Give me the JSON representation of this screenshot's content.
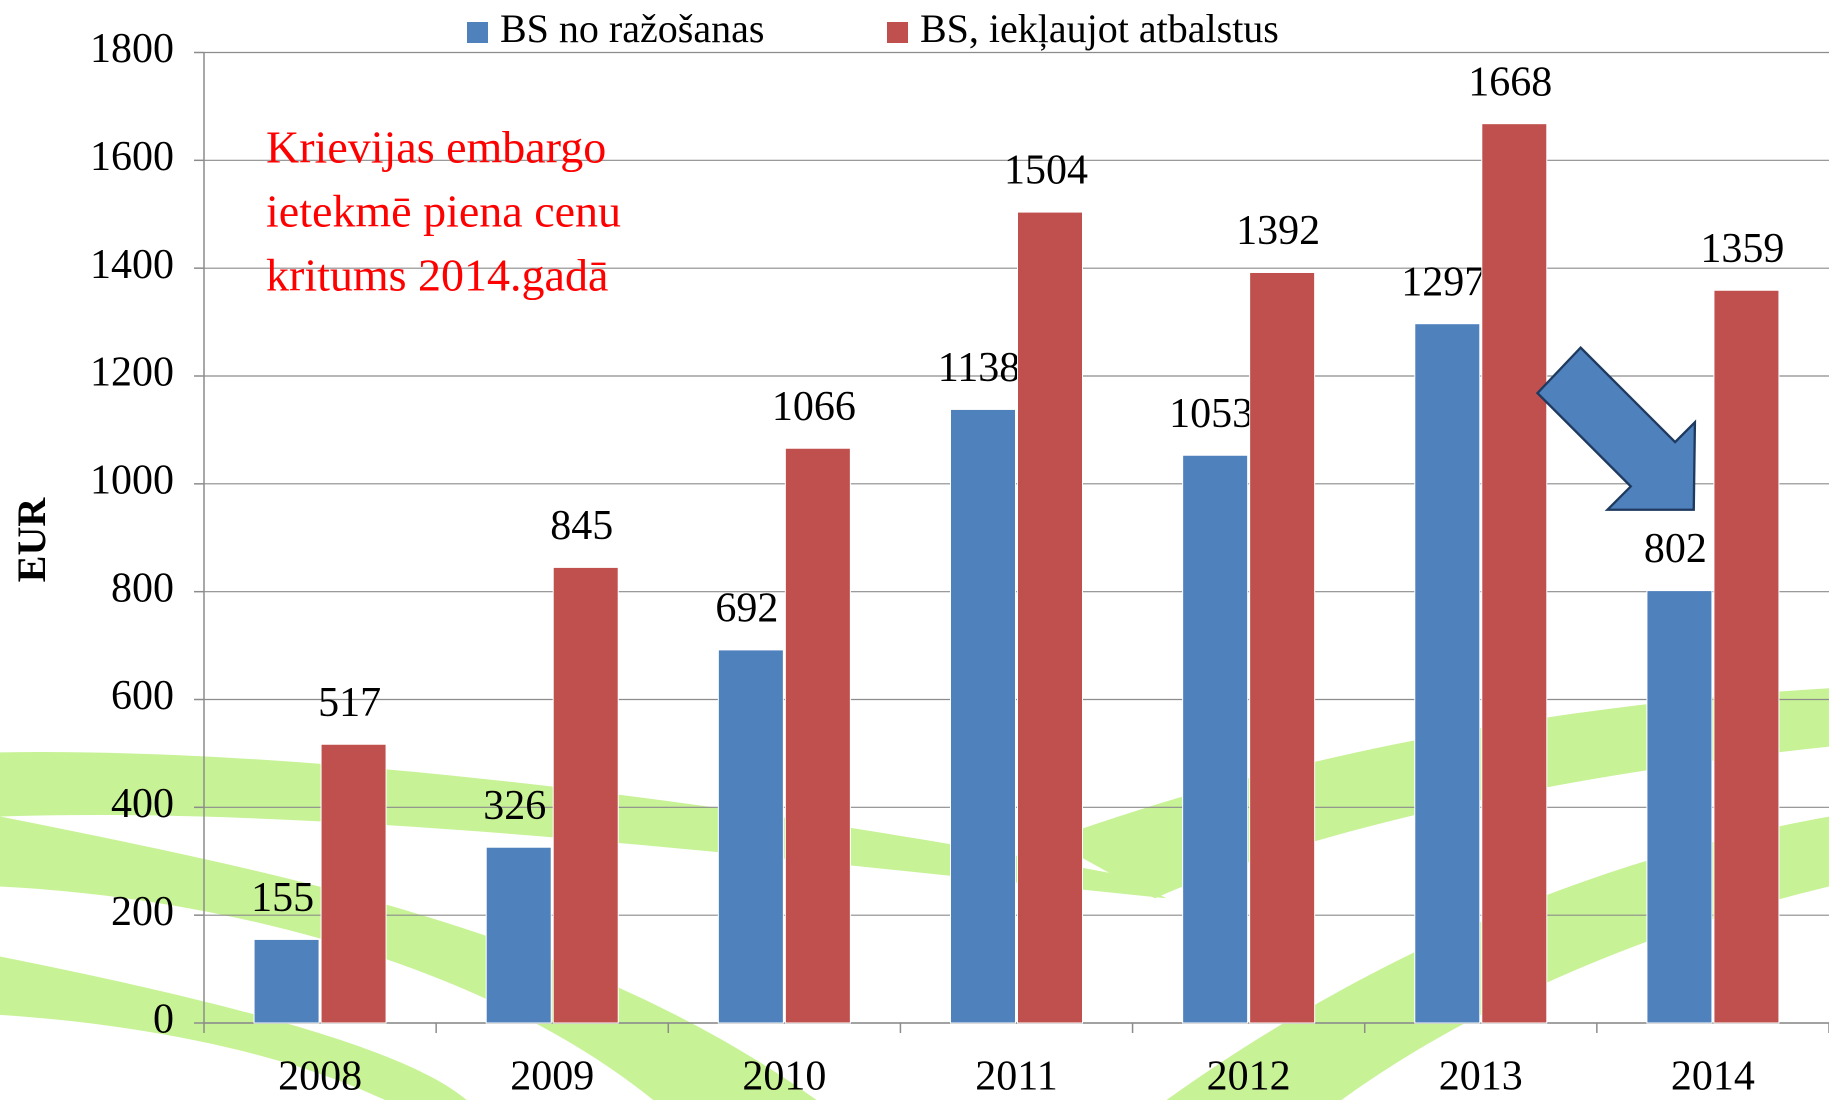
{
  "chart_data": {
    "type": "bar",
    "categories": [
      "2008",
      "2009",
      "2010",
      "2011",
      "2012",
      "2013",
      "2014"
    ],
    "series": [
      {
        "name": "BS no ražošanas",
        "color": "#4f81bd",
        "values": [
          155,
          326,
          692,
          1138,
          1053,
          1297,
          802
        ]
      },
      {
        "name": "BS, iekļaujot atbalstus",
        "color": "#c0504d",
        "values": [
          517,
          845,
          1066,
          1504,
          1392,
          1668,
          1359
        ]
      }
    ],
    "ylabel": "EUR",
    "ylim": [
      0,
      1800
    ],
    "yticks": [
      0,
      200,
      400,
      600,
      800,
      1000,
      1200,
      1400,
      1600,
      1800
    ],
    "grid": true,
    "annotation": [
      "Krievijas embargo",
      "ietekmē piena cenu",
      "kritums 2014.gadā"
    ],
    "annotation_color": "#ff0000"
  }
}
